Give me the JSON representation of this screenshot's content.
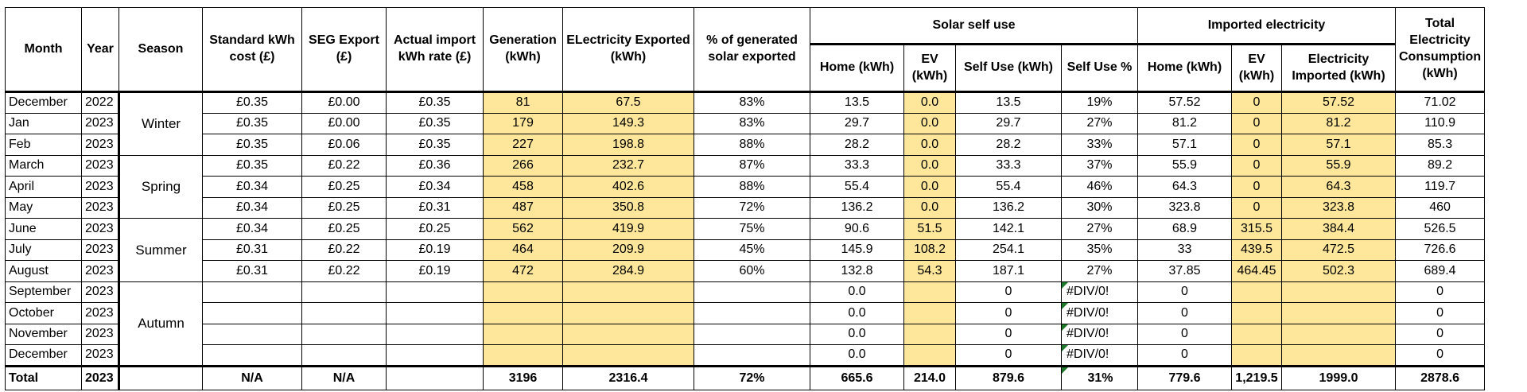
{
  "headers": {
    "month": "Month",
    "year": "Year",
    "season": "Season",
    "std_cost": "Standard kWh cost (£)",
    "seg_export": "SEG Export (£)",
    "import_rate": "Actual import kWh rate (£)",
    "generation": "Generation (kWh)",
    "exported": "ELectricity Exported (kWh)",
    "pct_exported": "% of generated solar exported",
    "solar_group": "Solar self use",
    "solar_home": "Home (kWh)",
    "solar_ev": "EV (kWh)",
    "solar_self_use": "Self Use (kWh)",
    "solar_self_pct": "Self Use %",
    "imported_group": "Imported electricity",
    "imp_home": "Home (kWh)",
    "imp_ev": "EV (kWh)",
    "imp_total": "Electricity Imported (kWh)",
    "total_consumption": "Total Electricity Consumption (kWh)"
  },
  "seasons": {
    "winter": "Winter",
    "spring": "Spring",
    "summer": "Summer",
    "autumn": "Autumn"
  },
  "rows": [
    {
      "month": "December",
      "year": "2022",
      "std": "£0.35",
      "seg": "£0.00",
      "rate": "£0.35",
      "gen": "81",
      "exp": "67.5",
      "pct": "83%",
      "sh": "13.5",
      "sev": "0.0",
      "su": "13.5",
      "sp": "19%",
      "ih": "57.52",
      "iev": "0",
      "it": "57.52",
      "tc": "71.02"
    },
    {
      "month": "Jan",
      "year": "2023",
      "std": "£0.35",
      "seg": "£0.00",
      "rate": "£0.35",
      "gen": "179",
      "exp": "149.3",
      "pct": "83%",
      "sh": "29.7",
      "sev": "0.0",
      "su": "29.7",
      "sp": "27%",
      "ih": "81.2",
      "iev": "0",
      "it": "81.2",
      "tc": "110.9"
    },
    {
      "month": "Feb",
      "year": "2023",
      "std": "£0.35",
      "seg": "£0.06",
      "rate": "£0.35",
      "gen": "227",
      "exp": "198.8",
      "pct": "88%",
      "sh": "28.2",
      "sev": "0.0",
      "su": "28.2",
      "sp": "33%",
      "ih": "57.1",
      "iev": "0",
      "it": "57.1",
      "tc": "85.3"
    },
    {
      "month": "March",
      "year": "2023",
      "std": "£0.35",
      "seg": "£0.22",
      "rate": "£0.36",
      "gen": "266",
      "exp": "232.7",
      "pct": "87%",
      "sh": "33.3",
      "sev": "0.0",
      "su": "33.3",
      "sp": "37%",
      "ih": "55.9",
      "iev": "0",
      "it": "55.9",
      "tc": "89.2"
    },
    {
      "month": "April",
      "year": "2023",
      "std": "£0.34",
      "seg": "£0.25",
      "rate": "£0.34",
      "gen": "458",
      "exp": "402.6",
      "pct": "88%",
      "sh": "55.4",
      "sev": "0.0",
      "su": "55.4",
      "sp": "46%",
      "ih": "64.3",
      "iev": "0",
      "it": "64.3",
      "tc": "119.7"
    },
    {
      "month": "May",
      "year": "2023",
      "std": "£0.34",
      "seg": "£0.25",
      "rate": "£0.31",
      "gen": "487",
      "exp": "350.8",
      "pct": "72%",
      "sh": "136.2",
      "sev": "0.0",
      "su": "136.2",
      "sp": "30%",
      "ih": "323.8",
      "iev": "0",
      "it": "323.8",
      "tc": "460"
    },
    {
      "month": "June",
      "year": "2023",
      "std": "£0.34",
      "seg": "£0.25",
      "rate": "£0.25",
      "gen": "562",
      "exp": "419.9",
      "pct": "75%",
      "sh": "90.6",
      "sev": "51.5",
      "su": "142.1",
      "sp": "27%",
      "ih": "68.9",
      "iev": "315.5",
      "it": "384.4",
      "tc": "526.5"
    },
    {
      "month": "July",
      "year": "2023",
      "std": "£0.31",
      "seg": "£0.22",
      "rate": "£0.19",
      "gen": "464",
      "exp": "209.9",
      "pct": "45%",
      "sh": "145.9",
      "sev": "108.2",
      "su": "254.1",
      "sp": "35%",
      "ih": "33",
      "iev": "439.5",
      "it": "472.5",
      "tc": "726.6"
    },
    {
      "month": "August",
      "year": "2023",
      "std": "£0.31",
      "seg": "£0.22",
      "rate": "£0.19",
      "gen": "472",
      "exp": "284.9",
      "pct": "60%",
      "sh": "132.8",
      "sev": "54.3",
      "su": "187.1",
      "sp": "27%",
      "ih": "37.85",
      "iev": "464.45",
      "it": "502.3",
      "tc": "689.4"
    },
    {
      "month": "September",
      "year": "2023",
      "std": "",
      "seg": "",
      "rate": "",
      "gen": "",
      "exp": "",
      "pct": "",
      "sh": "0.0",
      "sev": "",
      "su": "0",
      "sp": "#DIV/0!",
      "ih": "0",
      "iev": "",
      "it": "",
      "tc": "0"
    },
    {
      "month": "October",
      "year": "2023",
      "std": "",
      "seg": "",
      "rate": "",
      "gen": "",
      "exp": "",
      "pct": "",
      "sh": "0.0",
      "sev": "",
      "su": "0",
      "sp": "#DIV/0!",
      "ih": "0",
      "iev": "",
      "it": "",
      "tc": "0"
    },
    {
      "month": "November",
      "year": "2023",
      "std": "",
      "seg": "",
      "rate": "",
      "gen": "",
      "exp": "",
      "pct": "",
      "sh": "0.0",
      "sev": "",
      "su": "0",
      "sp": "#DIV/0!",
      "ih": "0",
      "iev": "",
      "it": "",
      "tc": "0"
    },
    {
      "month": "December",
      "year": "2023",
      "std": "",
      "seg": "",
      "rate": "",
      "gen": "",
      "exp": "",
      "pct": "",
      "sh": "0.0",
      "sev": "",
      "su": "0",
      "sp": "#DIV/0!",
      "ih": "0",
      "iev": "",
      "it": "",
      "tc": "0"
    }
  ],
  "total": {
    "label": "Total",
    "year": "2023",
    "std": "N/A",
    "seg": "N/A",
    "gen": "3196",
    "exp": "2316.4",
    "pct": "72%",
    "sh": "665.6",
    "sev": "214.0",
    "su": "879.6",
    "sp": "31%",
    "ih": "779.6",
    "iev": "1,219.5",
    "it": "1999.0",
    "tc": "2878.6"
  },
  "colors": {
    "highlight": "#fee79b",
    "error_marker": "#1f7a2c"
  }
}
